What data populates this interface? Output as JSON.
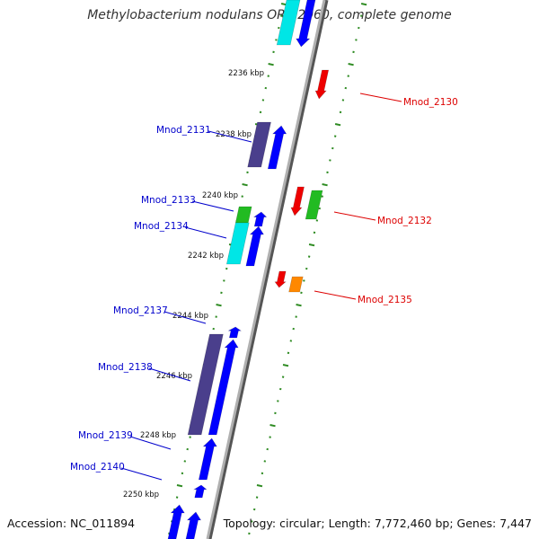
{
  "title": "Methylobacterium nodulans ORS 2060, complete genome",
  "accession": "Accession: NC_011894",
  "topology": "Topology: circular; Length: 7,772,460 bp; Genes: 7,447",
  "colors": {
    "backbone": "#8a8a8a",
    "tick": "#2e8b22",
    "label_left": "#0000cc",
    "label_right": "#dd0000",
    "cds_blue": "#0000ff",
    "cds_dark": "#4a3f8c",
    "cds_cyan": "#00e6e6",
    "cds_red": "#ee0000",
    "cds_green": "#22bb22",
    "cds_orange": "#ff8800"
  },
  "kbp_labels": [
    "2236 kbp",
    "2238 kbp",
    "2240 kbp",
    "2242 kbp",
    "2244 kbp",
    "2246 kbp",
    "2248 kbp",
    "2250 kbp"
  ],
  "genes_left": [
    "Mnod_2131",
    "Mnod_2133",
    "Mnod_2134",
    "Mnod_2137",
    "Mnod_2138",
    "Mnod_2139",
    "Mnod_2140"
  ],
  "genes_right": [
    "Mnod_2130",
    "Mnod_2132",
    "Mnod_2135"
  ]
}
